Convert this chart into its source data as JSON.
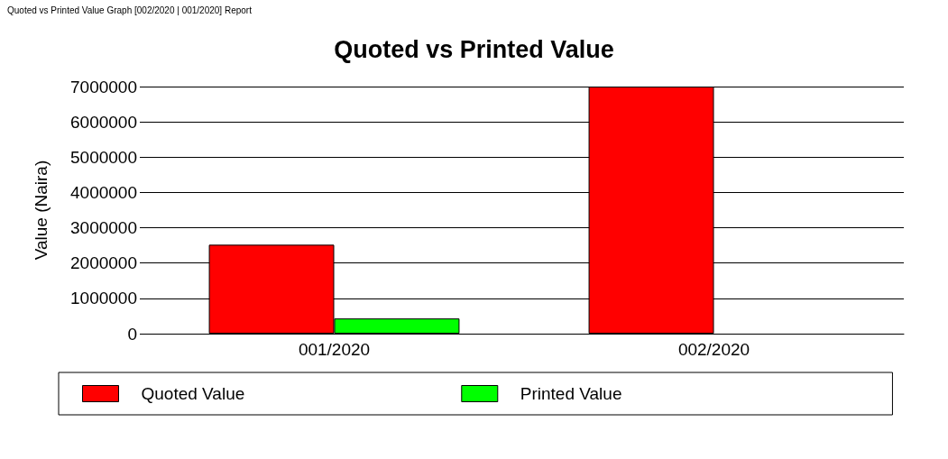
{
  "chart_data": {
    "type": "bar",
    "title": "Quoted vs Printed Value",
    "ylabel": "Value (Naira)",
    "annotations": [
      "Quoted vs Printed Value Graph [002/2020 | 001/2020] Report"
    ],
    "categories": [
      "001/2020",
      "002/2020"
    ],
    "series": [
      {
        "name": "Quoted Value",
        "color": "#ff0000",
        "values": [
          2520000,
          7000000
        ]
      },
      {
        "name": "Printed Value",
        "color": "#00ff00",
        "values": [
          430000,
          null
        ]
      }
    ],
    "ylim": [
      0,
      7000000
    ],
    "yticks": [
      0,
      1000000,
      2000000,
      3000000,
      4000000,
      5000000,
      6000000,
      7000000
    ],
    "grid": "y",
    "legend": "bottom"
  }
}
